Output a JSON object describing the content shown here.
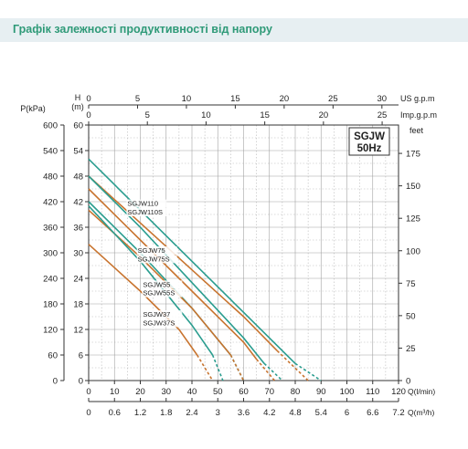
{
  "page_title": "Графік залежності продуктивності від напору",
  "chart_data": {
    "type": "line",
    "title": "SGJW",
    "subtitle": "50Hz",
    "xlabel": "Q(l/min)",
    "ylabel": "H (m)",
    "xlim": [
      0,
      120
    ],
    "ylim": [
      0,
      60
    ],
    "grid": true,
    "x_ticks": [
      "0",
      "10",
      "20",
      "30",
      "40",
      "50",
      "60",
      "70",
      "80",
      "90",
      "100",
      "110",
      "120"
    ],
    "y_ticks": [
      "0",
      "6",
      "12",
      "18",
      "24",
      "30",
      "36",
      "42",
      "48",
      "54",
      "60"
    ],
    "secondary_axes": {
      "kpa": {
        "label": "P(kPa)",
        "ticks": [
          "0",
          "60",
          "120",
          "180",
          "240",
          "300",
          "360",
          "420",
          "480",
          "540",
          "600"
        ]
      },
      "m": {
        "label1": "H",
        "label2": "(m)"
      },
      "us_gpm": {
        "label": "US g.p.m",
        "ticks": [
          "0",
          "5",
          "10",
          "15",
          "20",
          "25",
          "30"
        ]
      },
      "imp_gpm": {
        "label": "Imp.g.p.m",
        "ticks": [
          "0",
          "5",
          "10",
          "15",
          "20",
          "25"
        ]
      },
      "feet": {
        "label": "feet",
        "ticks": [
          "0",
          "25",
          "50",
          "75",
          "100",
          "125",
          "150",
          "175"
        ]
      },
      "m3h": {
        "label": "Q(m³/h)",
        "ticks": [
          "0",
          "0.6",
          "1.2",
          "1.8",
          "2.4",
          "3",
          "3.6",
          "4.2",
          "4.8",
          "5.4",
          "6",
          "6.6",
          "7.2"
        ]
      }
    },
    "series": [
      {
        "name": "SGJW110",
        "color": "#2a9d8f",
        "points": [
          [
            0,
            52
          ],
          [
            20,
            40
          ],
          [
            40,
            28
          ],
          [
            60,
            16
          ],
          [
            80,
            4
          ]
        ],
        "dashed": [
          [
            80,
            4
          ],
          [
            90,
            0
          ]
        ]
      },
      {
        "name": "SGJW110S",
        "color": "#c8742f",
        "points": [
          [
            0,
            48
          ],
          [
            20,
            37
          ],
          [
            40,
            26
          ],
          [
            60,
            15
          ],
          [
            73,
            7
          ]
        ],
        "dashed": [
          [
            73,
            7
          ],
          [
            85,
            0
          ]
        ]
      },
      {
        "name": "SGJW75",
        "color": "#2a9d8f",
        "points": [
          [
            0,
            48
          ],
          [
            20,
            36
          ],
          [
            40,
            23
          ],
          [
            60,
            10
          ],
          [
            68,
            4
          ]
        ],
        "dashed": [
          [
            68,
            4
          ],
          [
            75,
            0
          ]
        ]
      },
      {
        "name": "SGJW75S",
        "color": "#c8742f",
        "points": [
          [
            0,
            45
          ],
          [
            20,
            33
          ],
          [
            40,
            21
          ],
          [
            60,
            9
          ],
          [
            65,
            5
          ]
        ],
        "dashed": [
          [
            65,
            5
          ],
          [
            72,
            0
          ]
        ]
      },
      {
        "name": "SGJW55",
        "color": "#2a9d8f",
        "points": [
          [
            0,
            42
          ],
          [
            20,
            30
          ],
          [
            40,
            17
          ],
          [
            55,
            6
          ]
        ],
        "dashed": [
          [
            55,
            6
          ],
          [
            60,
            0
          ]
        ]
      },
      {
        "name": "SGJW55S",
        "color": "#c8742f",
        "points": [
          [
            0,
            40
          ],
          [
            20,
            29
          ],
          [
            40,
            17
          ],
          [
            55,
            6
          ]
        ],
        "dashed": [
          [
            55,
            6
          ],
          [
            60,
            0
          ]
        ]
      },
      {
        "name": "SGJW37",
        "color": "#2a9d8f",
        "points": [
          [
            0,
            41
          ],
          [
            20,
            28
          ],
          [
            40,
            13
          ],
          [
            48,
            6
          ]
        ],
        "dashed": [
          [
            48,
            6
          ],
          [
            52,
            0
          ]
        ]
      },
      {
        "name": "SGJW37S",
        "color": "#c8742f",
        "points": [
          [
            0,
            32
          ],
          [
            20,
            21
          ],
          [
            35,
            12
          ],
          [
            42,
            6
          ]
        ],
        "dashed": [
          [
            42,
            6
          ],
          [
            48,
            0
          ]
        ]
      }
    ],
    "curve_labels": [
      {
        "text": "SGJW110",
        "x": 15,
        "y": 41
      },
      {
        "text": "SGJW110S",
        "x": 15,
        "y": 39
      },
      {
        "text": "SGJW75",
        "x": 19,
        "y": 30
      },
      {
        "text": "SGJW75S",
        "x": 19,
        "y": 28
      },
      {
        "text": "SGJW55",
        "x": 21,
        "y": 22
      },
      {
        "text": "SGJW55S",
        "x": 21,
        "y": 20
      },
      {
        "text": "SGJW37",
        "x": 21,
        "y": 15
      },
      {
        "text": "SGJW37S",
        "x": 21,
        "y": 13
      }
    ]
  }
}
